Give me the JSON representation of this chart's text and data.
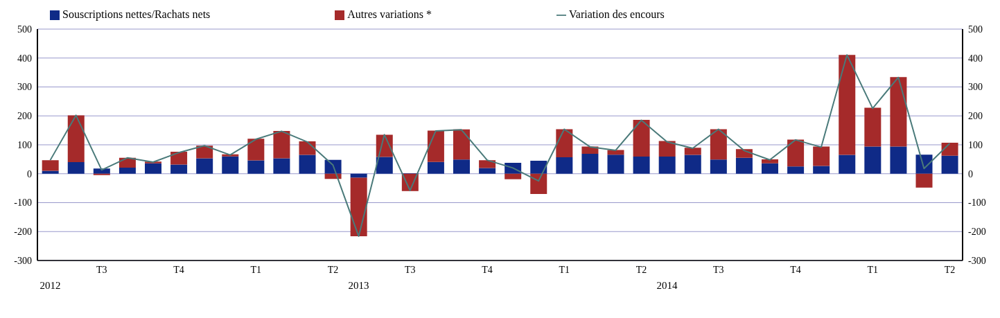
{
  "chart_data": {
    "type": "bar",
    "stacked": true,
    "categories": [
      null,
      null,
      "T3",
      null,
      null,
      "T4",
      null,
      null,
      "T1",
      null,
      null,
      "T2",
      null,
      null,
      "T3",
      null,
      null,
      "T4",
      null,
      null,
      "T1",
      null,
      null,
      "T2",
      null,
      null,
      "T3",
      null,
      null,
      "T4",
      null,
      null,
      "T1",
      null,
      null,
      "T2"
    ],
    "series": [
      {
        "name": "Souscriptions nettes/Rachats nets",
        "color": "#0f2a87",
        "values": [
          10,
          40,
          18,
          21,
          36,
          32,
          53,
          60,
          46,
          53,
          65,
          48,
          -14,
          58,
          2,
          41,
          49,
          20,
          38,
          45,
          57,
          69,
          66,
          59,
          59,
          65,
          49,
          55,
          36,
          25,
          27,
          65,
          94,
          94,
          66,
          62
        ]
      },
      {
        "name": "Autres variations *",
        "color": "#a52a2a",
        "values": [
          37,
          162,
          -5,
          34,
          6,
          44,
          44,
          7,
          75,
          95,
          47,
          -18,
          -202,
          77,
          -60,
          108,
          104,
          27,
          -19,
          -70,
          97,
          25,
          16,
          127,
          54,
          25,
          105,
          30,
          14,
          93,
          67,
          346,
          134,
          240,
          -48,
          45
        ]
      },
      {
        "name": "Variation des encours",
        "type": "line",
        "color": "#4a7a7a",
        "values": [
          47,
          202,
          13,
          55,
          40,
          73,
          97,
          65,
          119,
          147,
          110,
          30,
          -216,
          135,
          -58,
          148,
          152,
          47,
          20,
          -25,
          154,
          93,
          81,
          185,
          110,
          88,
          154,
          80,
          48,
          117,
          92,
          411,
          226,
          333,
          18,
          105
        ]
      }
    ],
    "ylim": [
      -300,
      500
    ],
    "yticks": [
      -300,
      -200,
      -100,
      0,
      100,
      200,
      300,
      400,
      500
    ],
    "y2lim": [
      -300,
      500
    ],
    "y2ticks": [
      -300,
      -200,
      -100,
      0,
      100,
      200,
      300,
      400,
      500
    ],
    "grid": "y",
    "legend": "top",
    "marker": "none",
    "annotations": [
      "2012",
      "2013",
      "2014"
    ]
  }
}
